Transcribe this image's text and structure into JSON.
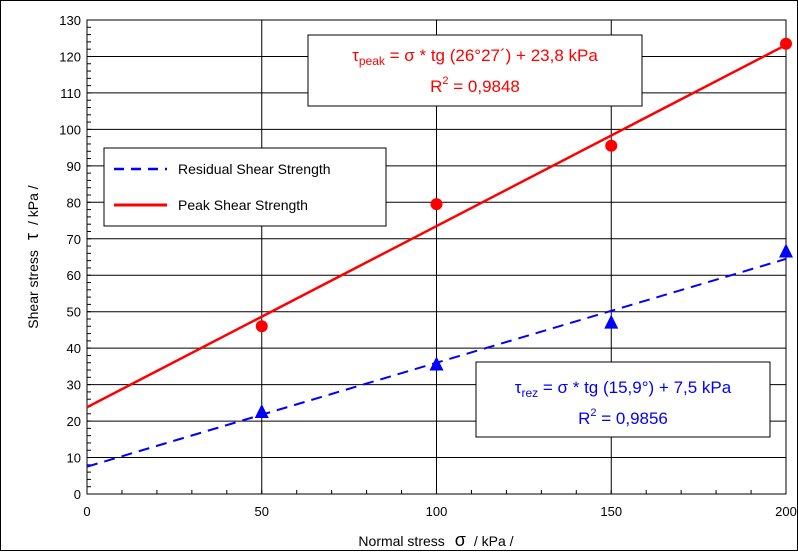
{
  "chart_data": {
    "type": "scatter",
    "xlabel_main": "Normal stress",
    "xlabel_symbol": "σ",
    "xlabel_unit": "/ kPa /",
    "ylabel_main": "Shear stress",
    "ylabel_symbol": "τ",
    "ylabel_unit": "/ kPa /",
    "xlim": [
      0,
      200
    ],
    "ylim": [
      0,
      130
    ],
    "x_ticks": [
      0,
      50,
      100,
      150,
      200
    ],
    "y_ticks": [
      0,
      10,
      20,
      30,
      40,
      50,
      60,
      70,
      80,
      90,
      100,
      110,
      120,
      130
    ],
    "grid": true,
    "legend_position": "left-middle",
    "series": [
      {
        "name": "Residual Shear Strength",
        "color": "#0000ff",
        "marker": "triangle",
        "line_style": "dashed",
        "points": [
          [
            50,
            22.5
          ],
          [
            100,
            35.5
          ],
          [
            150,
            47
          ],
          [
            200,
            66.5
          ]
        ],
        "fit": {
          "intercept": 7.5,
          "slope": 0.2849
        }
      },
      {
        "name": "Peak Shear Strength",
        "color": "#ff0000",
        "marker": "circle",
        "line_style": "solid",
        "points": [
          [
            50,
            46
          ],
          [
            100,
            79.5
          ],
          [
            150,
            95.5
          ],
          [
            200,
            123.5
          ]
        ],
        "fit": {
          "intercept": 23.8,
          "slope": 0.4968
        }
      }
    ],
    "annotations": {
      "peak": {
        "tau": "τ",
        "sub": "peak",
        "rest": " = σ * tg (26°27´) + 23,8 kPa",
        "r2_label": "R",
        "r2_exp": "2",
        "r2_value": " = 0,9848"
      },
      "rez": {
        "tau": "τ",
        "sub": "rez",
        "rest": " = σ * tg (15,9°) + 7,5 kPa",
        "r2_label": "R",
        "r2_exp": "2",
        "r2_value": " = 0,9856"
      }
    }
  }
}
